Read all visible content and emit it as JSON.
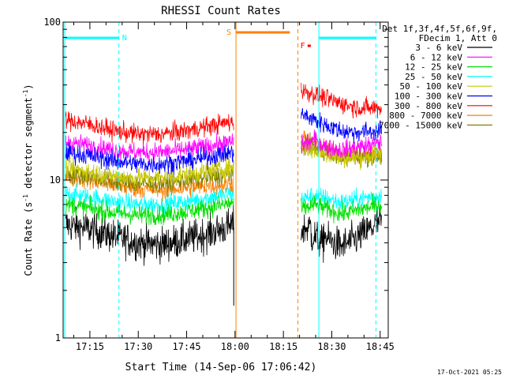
{
  "chart_data": {
    "type": "line",
    "title": "RHESSI Count Rates",
    "xlabel": "Start Time (14-Sep-06 17:06:42)",
    "ylabel_main": "Count Rate (s",
    "ylabel_sup": "-1",
    "ylabel_tail": " detector segment",
    "ylabel_sup2": "-1",
    "ylabel_close": ")",
    "y_scale": "log",
    "ylim": [
      1,
      100
    ],
    "xlim": [
      "17:06:42",
      "18:47:30"
    ],
    "x_ticks": [
      "17:15",
      "17:30",
      "17:45",
      "18:00",
      "18:15",
      "18:30",
      "18:45"
    ],
    "y_ticks": [
      "1",
      "10",
      "100"
    ],
    "legend_header": [
      "Det 1f,3f,4f,5f,6f,9f,",
      "FDecim 1, Att 0"
    ],
    "legend_position": "right",
    "timestamp": "17-Oct-2021 05:25",
    "series": [
      {
        "name": "3 - 6 keV",
        "color": "#000000",
        "seg1": [
          5.2,
          4.9,
          4.4,
          4.0,
          3.9,
          4.2,
          4.6,
          5.2
        ],
        "seg2": [
          4.8,
          5.2,
          4.2,
          3.8,
          4.2,
          4.8,
          5.5
        ]
      },
      {
        "name": "6 - 12 keV",
        "color": "#ff00ff",
        "seg1": [
          17.5,
          16.5,
          15.5,
          15.0,
          15.0,
          15.6,
          16.4,
          17.5
        ],
        "seg2": [
          16.5,
          18.0,
          16.0,
          15.5,
          16.0,
          16.5,
          17.3
        ]
      },
      {
        "name": "12 - 25 keV",
        "color": "#00e000",
        "seg1": [
          7.0,
          6.6,
          6.2,
          6.0,
          6.0,
          6.3,
          6.7,
          7.2
        ],
        "seg2": [
          6.5,
          7.0,
          6.5,
          6.1,
          6.4,
          6.7,
          7.0
        ]
      },
      {
        "name": "25 - 50 keV",
        "color": "#00ffff",
        "seg1": [
          8.2,
          7.8,
          7.3,
          7.0,
          7.0,
          7.3,
          7.8,
          8.3
        ],
        "seg2": [
          7.6,
          8.0,
          7.6,
          7.2,
          7.5,
          7.8,
          8.0
        ]
      },
      {
        "name": "50 - 100 keV",
        "color": "#c8c800",
        "seg1": [
          12.0,
          11.3,
          10.6,
          10.3,
          10.4,
          10.8,
          11.4,
          12.1
        ],
        "seg2": [
          16.0,
          15.5,
          14.5,
          13.8,
          13.8,
          14.2,
          14.5
        ]
      },
      {
        "name": "100 - 300 keV",
        "color": "#0000ff",
        "seg1": [
          15.0,
          14.2,
          13.2,
          12.6,
          12.6,
          13.2,
          14.0,
          15.0
        ],
        "seg2": [
          26.0,
          24.0,
          22.0,
          20.5,
          20.0,
          20.3,
          20.5
        ]
      },
      {
        "name": "300 - 800 keV",
        "color": "#ff0000",
        "seg1": [
          24.0,
          22.5,
          20.5,
          19.5,
          19.5,
          20.5,
          22.0,
          23.5
        ],
        "seg2": [
          37.0,
          35.0,
          32.5,
          30.5,
          29.0,
          28.5,
          28.5
        ]
      },
      {
        "name": "800 - 7000 keV",
        "color": "#ff7f00",
        "seg1": [
          10.5,
          10.0,
          9.3,
          8.8,
          8.7,
          8.9,
          9.2,
          9.5
        ],
        "seg2": [
          18.5,
          17.0,
          15.5,
          14.8,
          14.5,
          14.5,
          14.5
        ]
      },
      {
        "name": "7000 - 15000 keV",
        "color": "#808000",
        "seg1": [
          11.0,
          10.5,
          9.8,
          9.5,
          9.5,
          9.9,
          10.4,
          11.0
        ],
        "seg2": [
          17.0,
          16.0,
          15.0,
          14.2,
          14.0,
          14.0,
          14.2
        ]
      }
    ],
    "flags": [
      {
        "label": "N",
        "color": "#00ffff"
      },
      {
        "label": "S",
        "color": "#ff7f00"
      },
      {
        "label": "F",
        "color": "#ff0000"
      }
    ]
  }
}
